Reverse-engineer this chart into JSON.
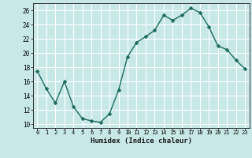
{
  "x": [
    0,
    1,
    2,
    3,
    4,
    5,
    6,
    7,
    8,
    9,
    10,
    11,
    12,
    13,
    14,
    15,
    16,
    17,
    18,
    19,
    20,
    21,
    22,
    23
  ],
  "y": [
    17.5,
    15.0,
    13.0,
    16.0,
    12.5,
    10.8,
    10.5,
    10.3,
    11.5,
    14.8,
    19.5,
    21.5,
    22.3,
    23.2,
    25.3,
    24.6,
    25.3,
    26.3,
    25.7,
    23.7,
    21.0,
    20.5,
    19.0,
    17.8
  ],
  "line_color": "#1a6b5e",
  "marker_color": "#1a6b5e",
  "bg_color": "#c8e8e8",
  "grid_color": "#e8f8f8",
  "xlabel": "Humidex (Indice chaleur)",
  "xlim": [
    -0.5,
    23.5
  ],
  "ylim": [
    9.5,
    27.0
  ],
  "yticks": [
    10,
    12,
    14,
    16,
    18,
    20,
    22,
    24,
    26
  ],
  "xticks": [
    0,
    1,
    2,
    3,
    4,
    5,
    6,
    7,
    8,
    9,
    10,
    11,
    12,
    13,
    14,
    15,
    16,
    17,
    18,
    19,
    20,
    21,
    22,
    23
  ],
  "xtick_labels": [
    "0",
    "1",
    "2",
    "3",
    "4",
    "5",
    "6",
    "7",
    "8",
    "9",
    "10",
    "11",
    "12",
    "13",
    "14",
    "15",
    "16",
    "17",
    "18",
    "19",
    "20",
    "21",
    "22",
    "23"
  ],
  "marker_size": 2.5,
  "line_width": 1.0
}
